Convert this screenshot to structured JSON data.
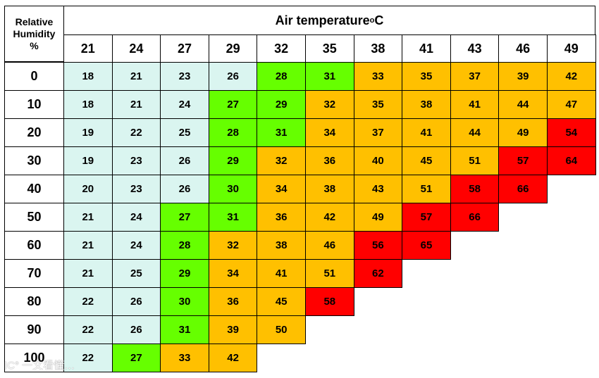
{
  "chart_data": {
    "type": "table",
    "row_header_title": [
      "Relative",
      "Humidity",
      "%"
    ],
    "column_header_title": "Air temperature ",
    "column_header_unit": "o",
    "column_header_unit_suffix": "C",
    "x_label": "Air temperature °C",
    "y_label": "Relative Humidity %",
    "temperatures": [
      21,
      24,
      27,
      29,
      32,
      35,
      38,
      41,
      43,
      46,
      49
    ],
    "humidity": [
      0,
      10,
      20,
      30,
      40,
      50,
      60,
      70,
      80,
      90,
      100
    ],
    "values": [
      [
        18,
        21,
        23,
        26,
        28,
        31,
        33,
        35,
        37,
        39,
        42
      ],
      [
        18,
        21,
        24,
        27,
        29,
        32,
        35,
        38,
        41,
        44,
        47
      ],
      [
        19,
        22,
        25,
        28,
        31,
        34,
        37,
        41,
        44,
        49,
        54
      ],
      [
        19,
        23,
        26,
        29,
        32,
        36,
        40,
        45,
        51,
        57,
        64
      ],
      [
        20,
        23,
        26,
        30,
        34,
        38,
        43,
        51,
        58,
        66
      ],
      [
        21,
        24,
        27,
        31,
        36,
        42,
        49,
        57,
        66
      ],
      [
        21,
        24,
        28,
        32,
        38,
        46,
        56,
        65
      ],
      [
        21,
        25,
        29,
        34,
        41,
        51,
        62
      ],
      [
        22,
        26,
        30,
        36,
        45,
        58
      ],
      [
        22,
        26,
        31,
        39,
        50
      ],
      [
        22,
        27,
        33,
        42
      ]
    ],
    "bands": [
      {
        "max": 26,
        "color": "#daf5f0"
      },
      {
        "max": 31,
        "color": "#66ff00"
      },
      {
        "max": 54,
        "color": "#ffc000"
      },
      {
        "max": 100,
        "color": "#ff0000"
      }
    ],
    "band_exceptions": [
      {
        "row": 2,
        "col": 10,
        "color": "#ff0000"
      }
    ]
  },
  "watermark": "IC° 一文看懂…"
}
